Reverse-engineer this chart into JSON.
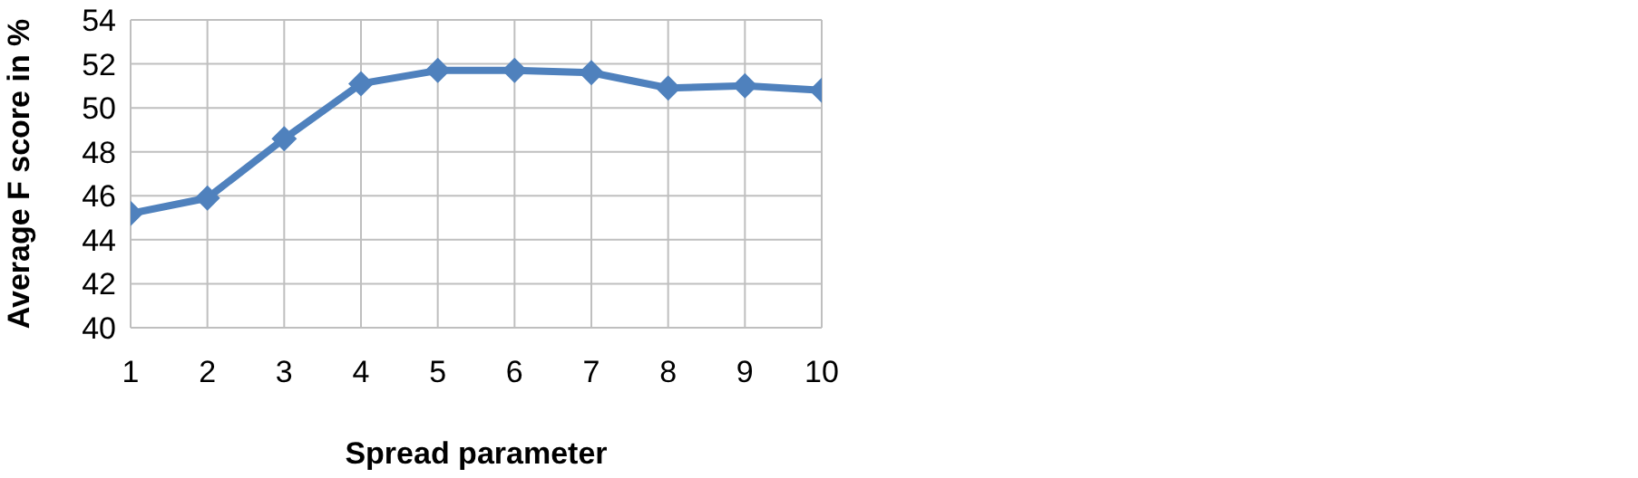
{
  "chart_data": {
    "type": "line",
    "xlabel": "Spread parameter",
    "ylabel": "Average F score in %",
    "x": [
      1,
      2,
      3,
      4,
      5,
      6,
      7,
      8,
      9,
      10
    ],
    "series": [
      {
        "color": "#4f81bd",
        "values": [
          45.2,
          45.9,
          48.6,
          51.1,
          51.7,
          51.7,
          51.6,
          50.9,
          51.0,
          50.8
        ]
      }
    ],
    "xlim": [
      1,
      10
    ],
    "xticks": [
      1,
      2,
      3,
      4,
      5,
      6,
      7,
      8,
      9,
      10
    ],
    "ylim": [
      40,
      54
    ],
    "yticks": [
      40,
      42,
      44,
      46,
      48,
      50,
      52,
      54
    ],
    "grid": true,
    "marker": "diamond",
    "line_style": "solid",
    "legend": false
  }
}
